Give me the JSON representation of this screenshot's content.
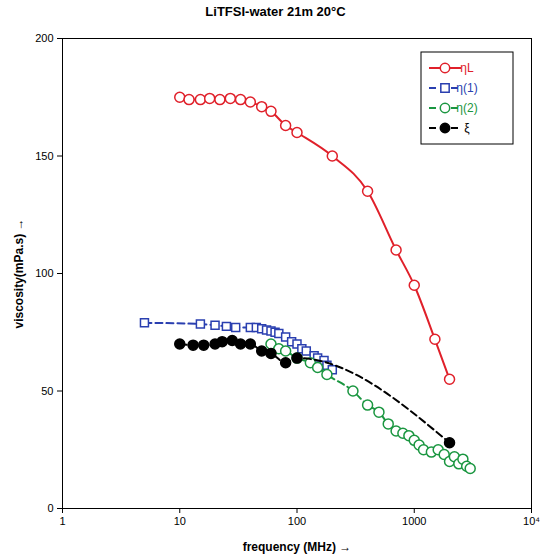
{
  "chart_data": {
    "type": "line",
    "title": "LiTFSI-water 21m 20°C",
    "x_label": "frequency (MHz)",
    "y_label": "viscosity(mPa.s)",
    "log": "x",
    "grid": false,
    "legend": "top-right",
    "xlim": [
      1,
      10000
    ],
    "xticks": [
      1,
      10,
      100,
      1000,
      {
        "value": 10000,
        "label": "10⁴"
      }
    ],
    "ylim": [
      0,
      200
    ],
    "yticks": [
      0,
      50,
      100,
      150,
      200
    ],
    "series": [
      {
        "name": "ηL",
        "color": "#e0202a",
        "marker": "circle-open",
        "line_style": "solid",
        "x": [
          10,
          12,
          15,
          18,
          22,
          27,
          33,
          40,
          50,
          60,
          80,
          100,
          200,
          400,
          700,
          1000,
          1500,
          2000
        ],
        "values": [
          175,
          174,
          174,
          174.5,
          174,
          174.5,
          174,
          173,
          171,
          169,
          163,
          160,
          150,
          135,
          110,
          95,
          72,
          55
        ]
      },
      {
        "name": "η(1)",
        "color": "#2a3fb0",
        "marker": "square-open",
        "line_style": "dashed",
        "x": [
          5,
          15,
          20,
          25,
          30,
          40,
          45,
          50,
          55,
          60,
          65,
          70,
          80,
          90,
          100,
          110,
          120,
          140,
          150,
          170,
          180,
          200
        ],
        "values": [
          79,
          78.5,
          78,
          77.5,
          77,
          77,
          77,
          76.5,
          76,
          75.5,
          75,
          74.5,
          73,
          71,
          70,
          68,
          67,
          65,
          64,
          63,
          61,
          59
        ]
      },
      {
        "name": "η(2)",
        "color": "#1a9640",
        "marker": "circle-open",
        "line_style": "dashed",
        "x": [
          60,
          70,
          80,
          100,
          130,
          150,
          180,
          300,
          400,
          500,
          600,
          700,
          800,
          900,
          1000,
          1100,
          1200,
          1400,
          1600,
          1800,
          2000,
          2200,
          2400,
          2600,
          2800,
          3000
        ],
        "values": [
          70,
          68,
          67,
          64,
          62,
          60,
          57,
          50,
          44,
          41,
          36,
          33,
          32,
          31,
          29,
          27,
          25,
          24,
          25,
          23,
          20,
          22,
          19,
          21,
          18,
          17
        ]
      },
      {
        "name": "ξ",
        "color": "#000000",
        "marker": "circle",
        "line_style": "dashed",
        "x": [
          10,
          13,
          16,
          20,
          23,
          28,
          33,
          40,
          50,
          60,
          80,
          100,
          2000
        ],
        "values": [
          70,
          69.5,
          69.5,
          70,
          71,
          71.5,
          70,
          70,
          67,
          66,
          62,
          64,
          28
        ]
      }
    ]
  }
}
